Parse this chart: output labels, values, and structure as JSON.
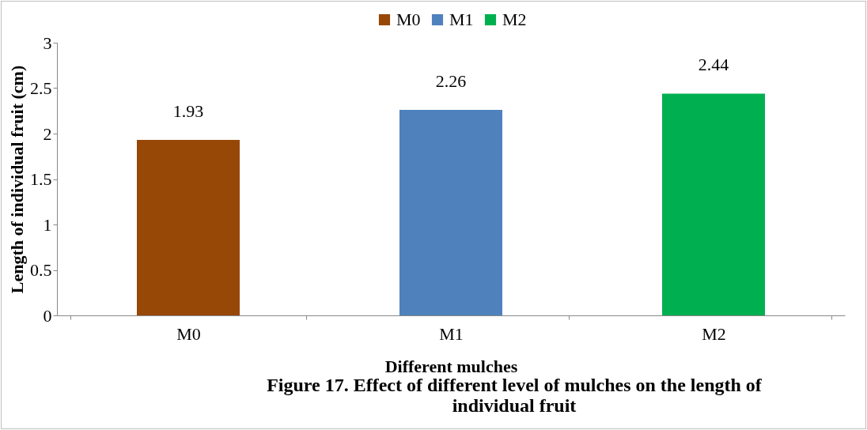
{
  "chart_data": {
    "type": "bar",
    "title": "Figure 17. Effect of different level of mulches on the length of individual fruit",
    "xlabel": "Different mulches",
    "ylabel": "Length of individual fruit (cm)",
    "categories": [
      "M0",
      "M1",
      "M2"
    ],
    "series": [
      {
        "name": "M0",
        "color": "#974706",
        "values": [
          1.93,
          null,
          null
        ]
      },
      {
        "name": "M1",
        "color": "#4f81bd",
        "values": [
          null,
          2.26,
          null
        ]
      },
      {
        "name": "M2",
        "color": "#00b050",
        "values": [
          null,
          null,
          2.44
        ]
      }
    ],
    "ylim": [
      0,
      3
    ],
    "yticks": [
      0,
      0.5,
      1,
      1.5,
      2,
      2.5,
      3
    ],
    "grid": false,
    "legend": "top",
    "data_labels": true
  }
}
